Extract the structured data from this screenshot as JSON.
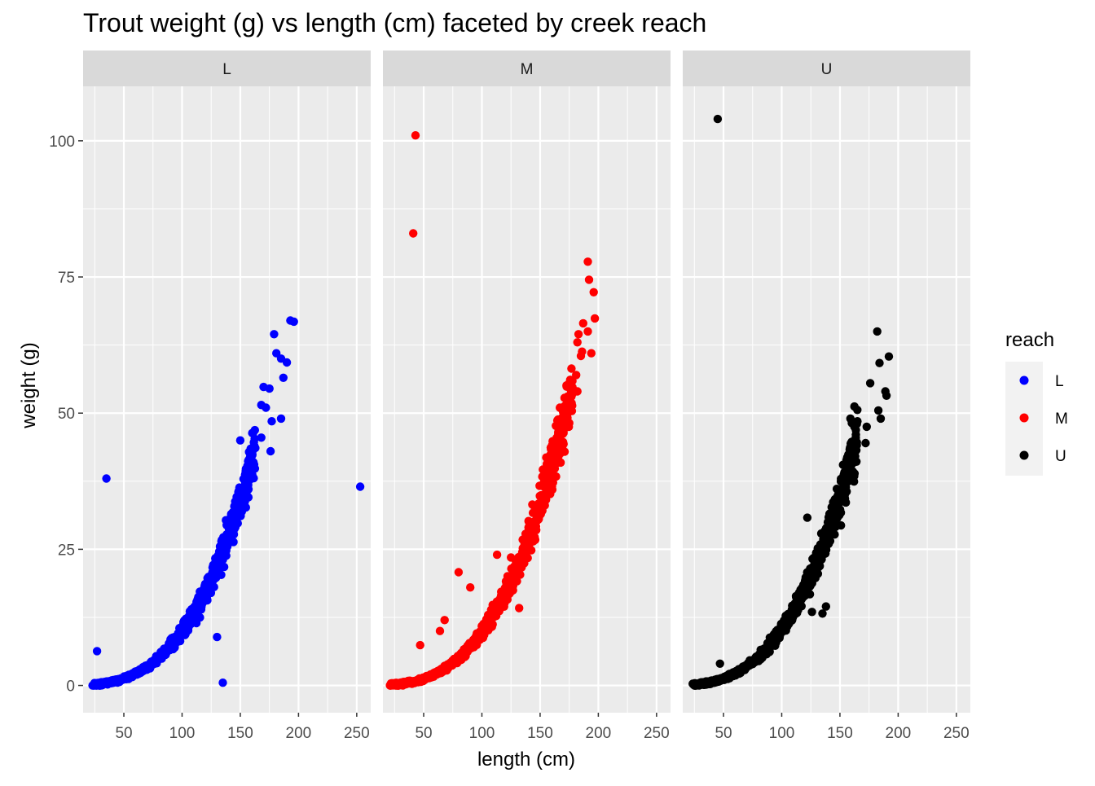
{
  "chart_data": {
    "type": "scatter",
    "title": "Trout weight (g) vs length (cm) faceted by creek reach",
    "xlabel": "length (cm)",
    "ylabel": "weight (g)",
    "xlim": [
      15,
      262
    ],
    "ylim": [
      -5,
      110
    ],
    "x_ticks": [
      50,
      100,
      150,
      200,
      250
    ],
    "y_ticks": [
      0,
      25,
      50,
      75,
      100
    ],
    "grid": true,
    "legend": {
      "title": "reach",
      "placement": "right",
      "entries": [
        {
          "label": "L",
          "color": "#0000ff"
        },
        {
          "label": "M",
          "color": "#ff0000"
        },
        {
          "label": "U",
          "color": "#000000"
        }
      ]
    },
    "facets": [
      {
        "label": "L",
        "color": "#0000ff",
        "outliers": [
          [
            27,
            6.3
          ],
          [
            35,
            38
          ],
          [
            130,
            8.9
          ],
          [
            135,
            0.5
          ],
          [
            253,
            36.5
          ],
          [
            193,
            67
          ],
          [
            196,
            66.8
          ],
          [
            179,
            64.5
          ],
          [
            181,
            61
          ],
          [
            185,
            60
          ],
          [
            190,
            59.3
          ],
          [
            187,
            56.5
          ],
          [
            175,
            54.5
          ],
          [
            170,
            54.8
          ],
          [
            185,
            49
          ],
          [
            177,
            48.5
          ],
          [
            168,
            45.5
          ],
          [
            150,
            45
          ],
          [
            176,
            43
          ],
          [
            162,
            44
          ],
          [
            168,
            51.5
          ],
          [
            172,
            51
          ]
        ]
      },
      {
        "label": "M",
        "color": "#ff0000",
        "outliers": [
          [
            43,
            101
          ],
          [
            41,
            83
          ],
          [
            191,
            77.8
          ],
          [
            196,
            72.2
          ],
          [
            192,
            74.5
          ],
          [
            197,
            67.4
          ],
          [
            191,
            65
          ],
          [
            187,
            66.5
          ],
          [
            183,
            64.5
          ],
          [
            182,
            63
          ],
          [
            186,
            61.3
          ],
          [
            194,
            61
          ],
          [
            185,
            60.5
          ],
          [
            181,
            57
          ],
          [
            175,
            55.5
          ],
          [
            182,
            54
          ],
          [
            171,
            52.8
          ],
          [
            167,
            51
          ],
          [
            80,
            20.8
          ],
          [
            90,
            18
          ],
          [
            64,
            10
          ],
          [
            68,
            12
          ],
          [
            47,
            7.4
          ],
          [
            132,
            14.2
          ],
          [
            125,
            23.5
          ],
          [
            113,
            24
          ]
        ]
      },
      {
        "label": "U",
        "color": "#000000",
        "outliers": [
          [
            45,
            104
          ],
          [
            182,
            65
          ],
          [
            192,
            60.4
          ],
          [
            184,
            59.2
          ],
          [
            189,
            54
          ],
          [
            183,
            50.5
          ],
          [
            176,
            55.5
          ],
          [
            190,
            53.2
          ],
          [
            185,
            49
          ],
          [
            159,
            49
          ],
          [
            165,
            48.5
          ],
          [
            173,
            47.5
          ],
          [
            172,
            44.5
          ],
          [
            122,
            30.8
          ],
          [
            120,
            16.5
          ],
          [
            126,
            13.5
          ],
          [
            138,
            14.5
          ],
          [
            135,
            13.2
          ],
          [
            47,
            4
          ]
        ]
      }
    ],
    "trend": {
      "L": {
        "min": 23,
        "max": 163,
        "a": 1e-05,
        "b": 3.0,
        "spread": 0.12
      },
      "M": {
        "min": 21,
        "max": 178,
        "a": 9.8e-06,
        "b": 3.0,
        "spread": 0.12
      },
      "U": {
        "min": 23,
        "max": 165,
        "a": 1.03e-05,
        "b": 3.0,
        "spread": 0.12
      }
    }
  }
}
